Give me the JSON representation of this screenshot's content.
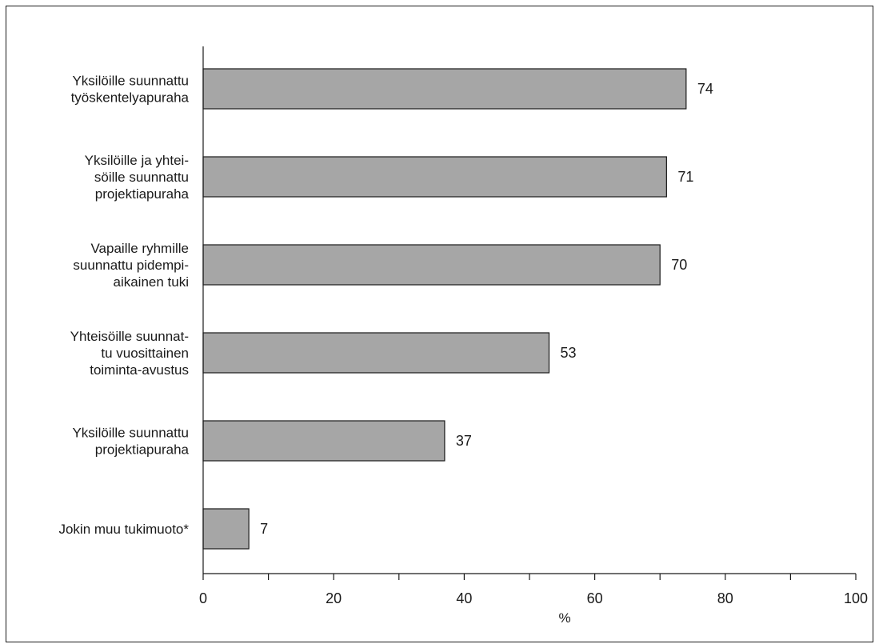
{
  "chart_data": {
    "type": "bar",
    "orientation": "horizontal",
    "categories": [
      [
        "Yksilöille suunnattu",
        "työskentelyapuraha"
      ],
      [
        "Yksilöille ja yhtei-",
        "söille suunnattu",
        "projektiapuraha"
      ],
      [
        "Vapaille ryhmille",
        "suunnattu pidempi-",
        "aikainen tuki"
      ],
      [
        "Yhteisöille suunnat-",
        "tu vuosittainen",
        "toiminta-avustus"
      ],
      [
        "Yksilöille suunnattu",
        "projektiapuraha"
      ],
      [
        "Jokin muu tukimuoto*"
      ]
    ],
    "values": [
      74,
      71,
      70,
      53,
      37,
      7
    ],
    "data_labels": [
      "74",
      "71",
      "70",
      "53",
      "37",
      "7"
    ],
    "xlabel": "%",
    "xlim": [
      0,
      100
    ],
    "xticks": [
      0,
      20,
      40,
      60,
      80,
      100
    ],
    "minor_ticks": [
      10,
      30,
      50,
      70,
      90
    ],
    "legend": false,
    "grid": false,
    "colors": {
      "bar_fill": "#a6a6a6",
      "bar_stroke": "#1a1a1a",
      "axis": "#1a1a1a",
      "text": "#1a1a1a"
    }
  }
}
